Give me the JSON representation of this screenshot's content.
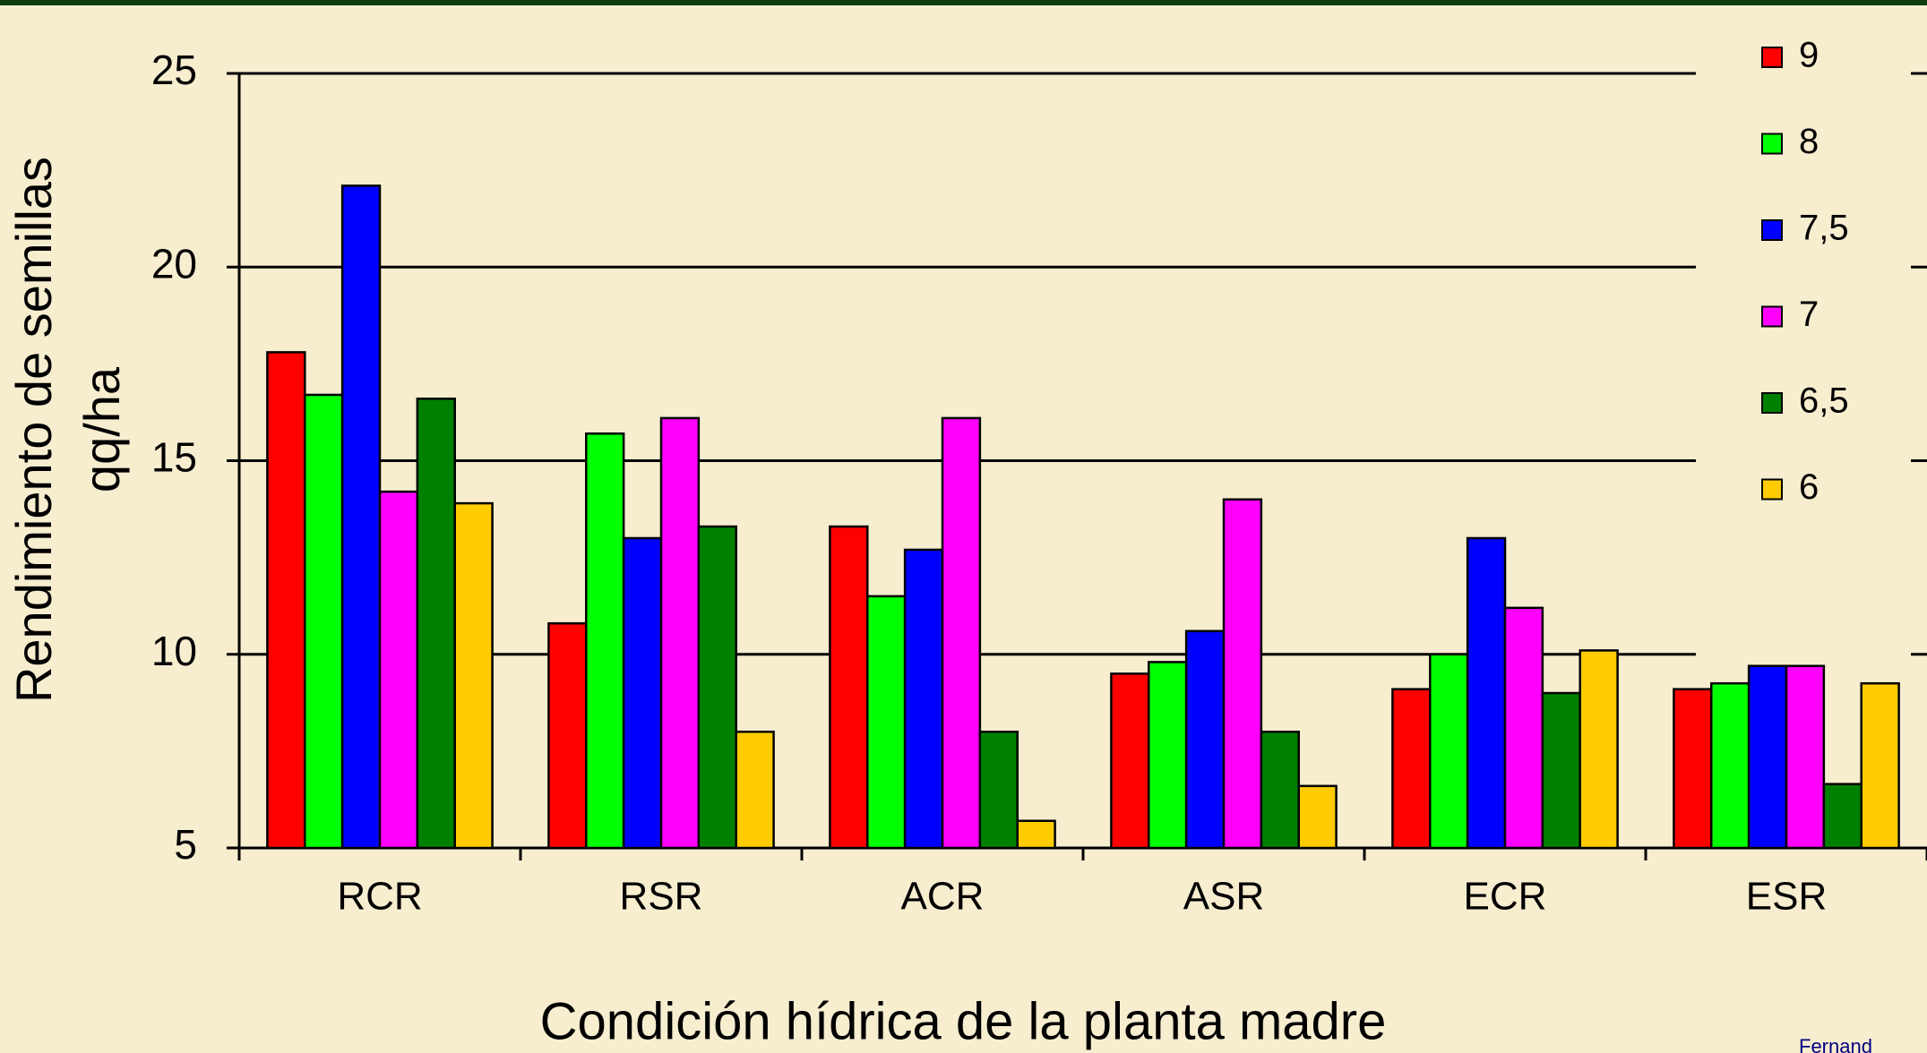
{
  "chart_data": {
    "type": "bar",
    "y_axis_label": [
      "Rendimiento de semillas",
      "qq/ha"
    ],
    "x_axis_label": "Condición hídrica de la planta madre",
    "source": "Fernand",
    "categories": [
      "RCR",
      "RSR",
      "ACR",
      "ASR",
      "ECR",
      "ESR"
    ],
    "series": [
      {
        "name": "9",
        "color": "#ff0000",
        "values": [
          17.8,
          10.8,
          13.3,
          9.5,
          9.1,
          9.1
        ]
      },
      {
        "name": "8",
        "color": "#00ff00",
        "values": [
          16.7,
          15.7,
          11.5,
          9.8,
          10.0,
          9.25
        ]
      },
      {
        "name": "7,5",
        "color": "#0000ff",
        "values": [
          22.1,
          13.0,
          12.7,
          10.6,
          13.0,
          9.7
        ]
      },
      {
        "name": "7",
        "color": "#ff00ff",
        "values": [
          14.2,
          16.1,
          16.1,
          14.0,
          11.2,
          9.7
        ]
      },
      {
        "name": "6,5",
        "color": "#008000",
        "values": [
          16.6,
          13.3,
          8.0,
          8.0,
          9.0,
          6.65
        ]
      },
      {
        "name": "6",
        "color": "#ffcc00",
        "values": [
          13.9,
          8.0,
          5.7,
          6.6,
          10.1,
          9.25
        ]
      }
    ],
    "ylim": [
      5,
      25
    ],
    "yticks": [
      5,
      10,
      15,
      20,
      25
    ],
    "grid": true,
    "legend": "right"
  }
}
